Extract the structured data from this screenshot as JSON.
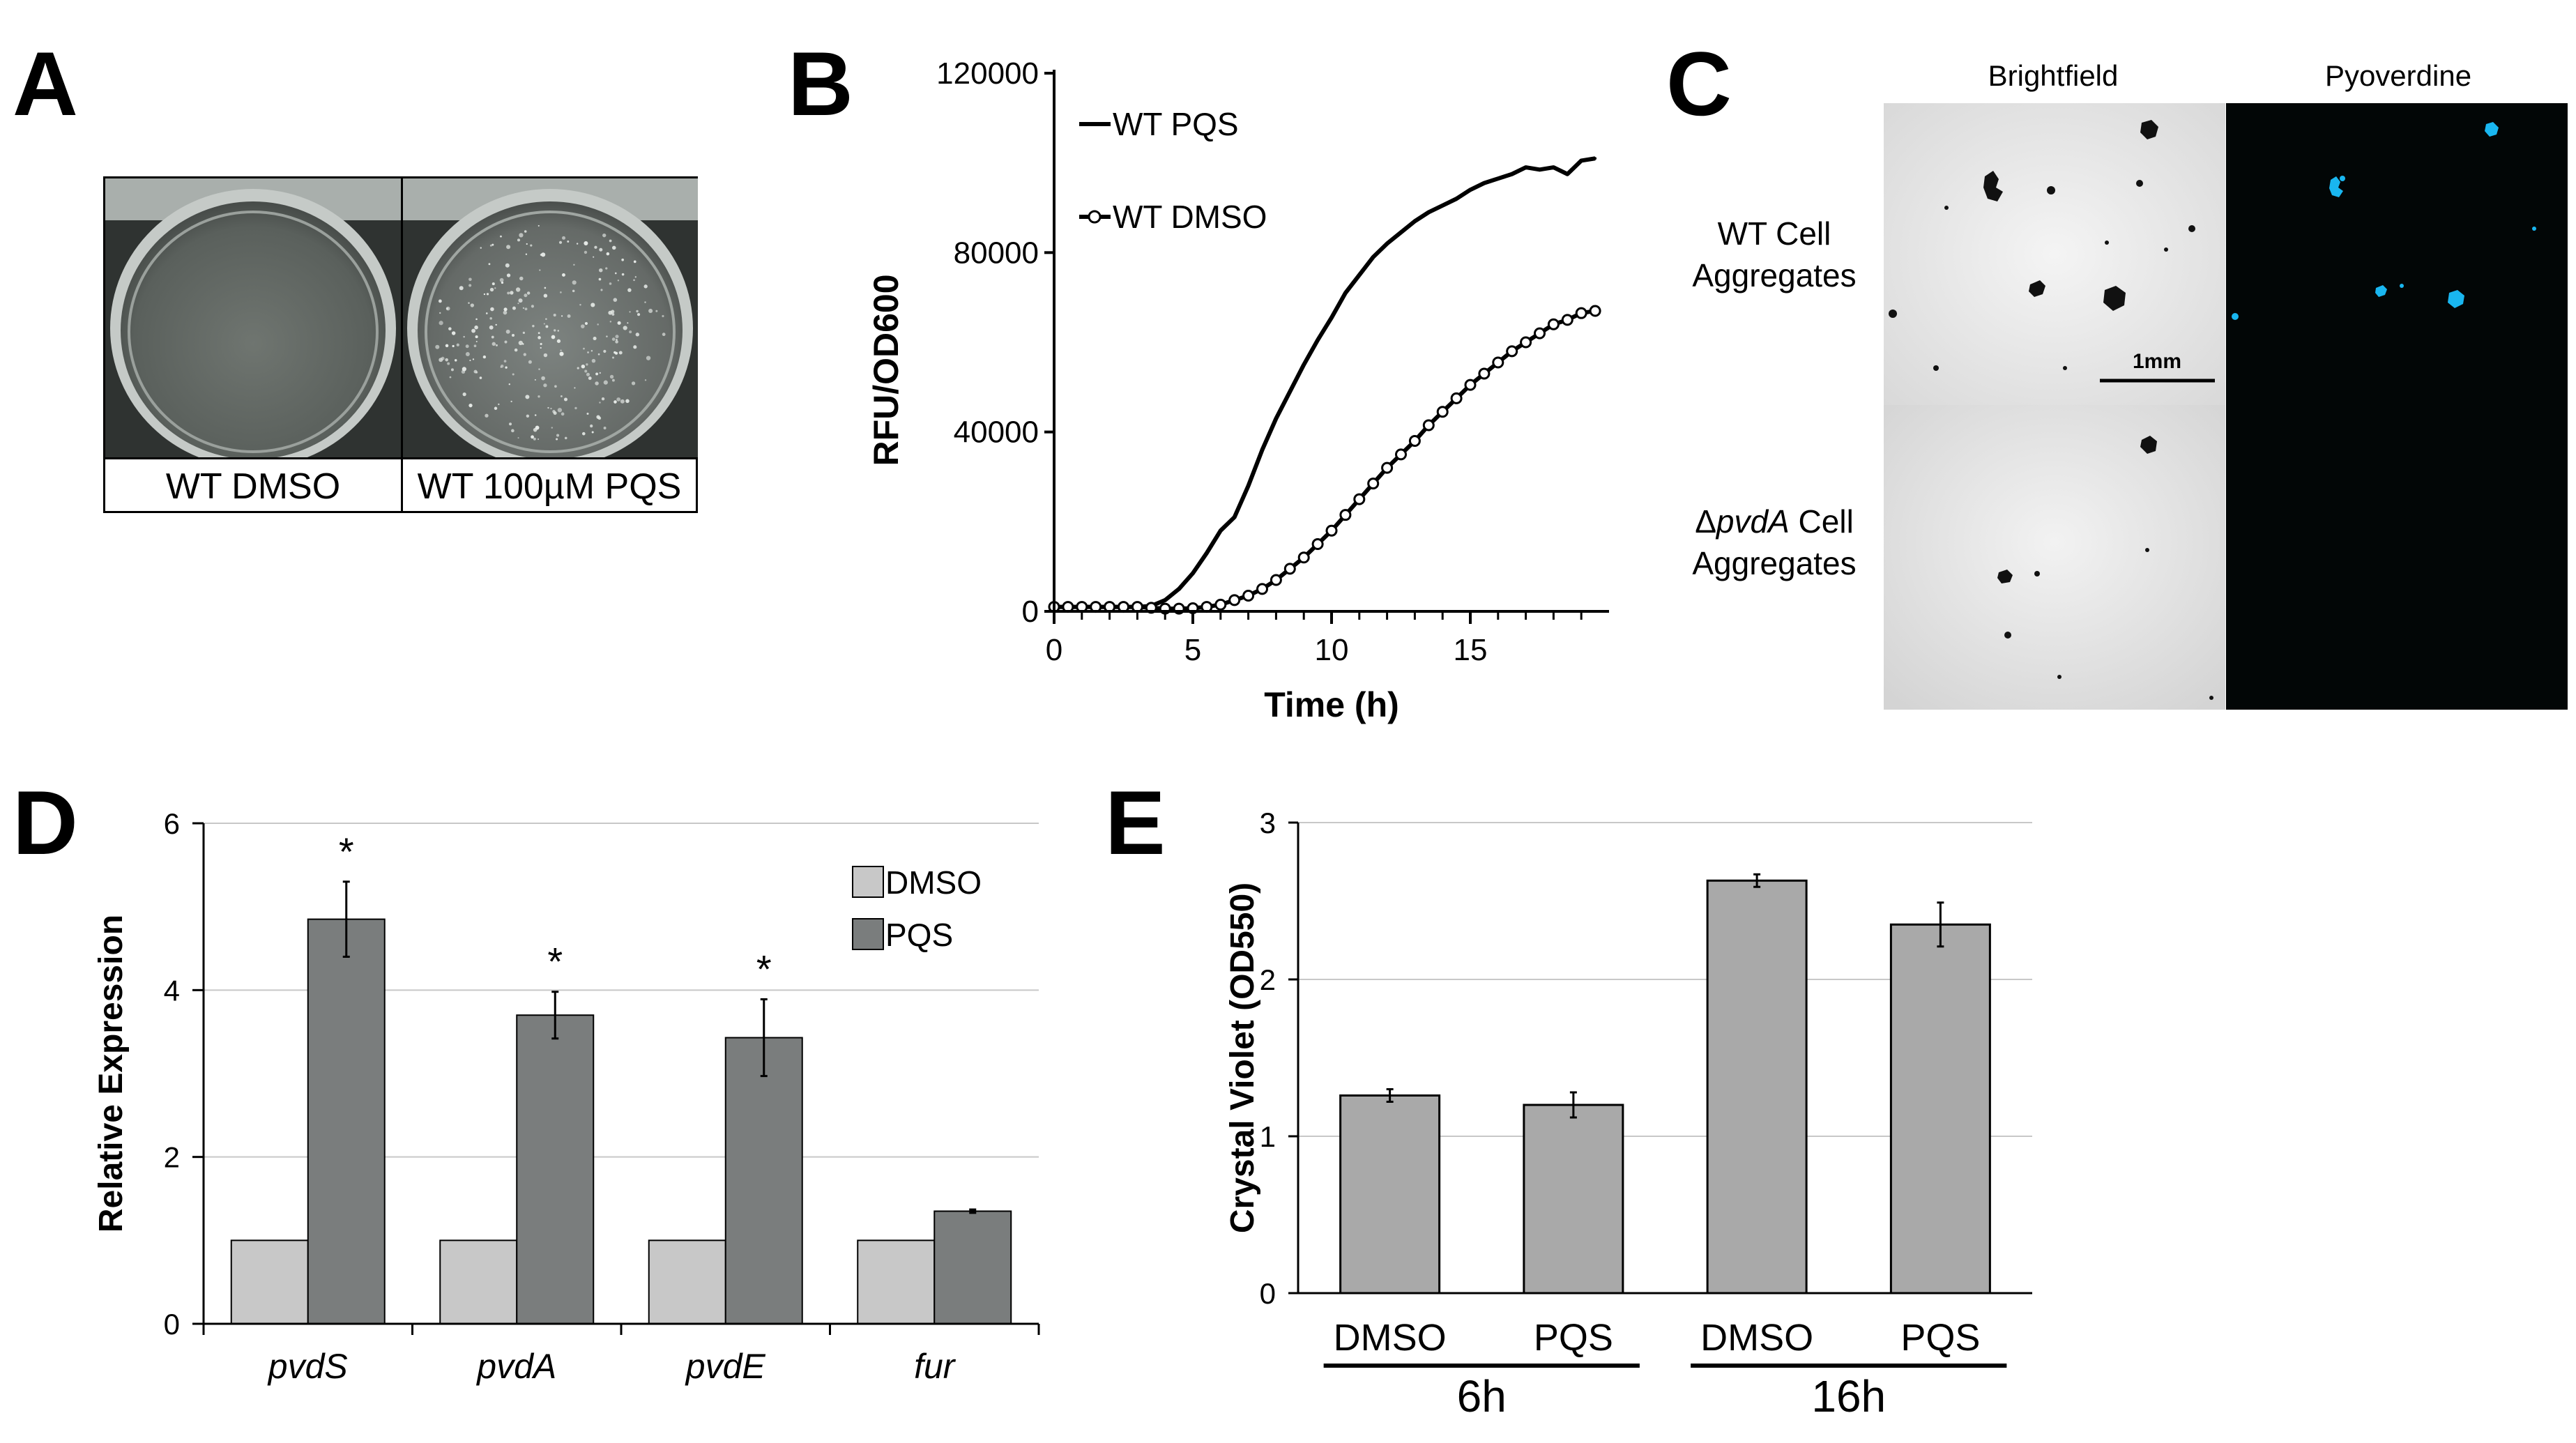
{
  "panels": {
    "a": "A",
    "b": "B",
    "c": "C",
    "d": "D",
    "e": "E"
  },
  "panelA": {
    "labels": [
      "WT DMSO",
      "WT 100µM PQS"
    ]
  },
  "panelC": {
    "columns": [
      "Brightfield",
      "Pyoverdine"
    ],
    "rows": [
      {
        "prefix": "",
        "italic": "",
        "line1": "WT Cell",
        "line2": "Aggregates"
      },
      {
        "prefix": "Δ",
        "italic": "pvdA",
        "line1": " Cell",
        "line2": "Aggregates"
      }
    ],
    "scalebar": "1mm"
  },
  "colors": {
    "dmso": "#c8c8c8",
    "pqs": "#7a7d7d",
    "biofilm": "#a9a9a9",
    "pyoverdine": "#19b6f0"
  },
  "chart_data": [
    {
      "id": "B",
      "type": "line",
      "xlabel": "Time (h)",
      "ylabel": "RFU/OD600",
      "xlim": [
        0,
        20
      ],
      "ylim": [
        0,
        120000
      ],
      "xticks": [
        "0",
        "5",
        "10",
        "15"
      ],
      "xtick_values": [
        0,
        5,
        10,
        15
      ],
      "yticks": [
        "0",
        "40000",
        "80000",
        "120000"
      ],
      "ytick_values": [
        0,
        40000,
        80000,
        120000
      ],
      "series": [
        {
          "name": "WT PQS",
          "marker": "none",
          "x": [
            0,
            0.5,
            1,
            1.5,
            2,
            2.5,
            3,
            3.5,
            4,
            4.5,
            5,
            5.5,
            6,
            6.5,
            7,
            7.5,
            8,
            8.5,
            9,
            9.5,
            10,
            10.5,
            11,
            11.5,
            12,
            12.5,
            13,
            13.5,
            14,
            14.5,
            15,
            15.5,
            16,
            16.5,
            17,
            17.5,
            18,
            18.5,
            19,
            19.5
          ],
          "y": [
            1000,
            1000,
            1000,
            1000,
            1000,
            1000,
            1000,
            1200,
            2500,
            5000,
            8500,
            13000,
            18000,
            21000,
            28000,
            36000,
            43000,
            49000,
            55000,
            60500,
            65500,
            71000,
            75000,
            79000,
            82000,
            84500,
            87000,
            89000,
            90500,
            92000,
            94000,
            95500,
            96500,
            97500,
            99000,
            98500,
            99000,
            97500,
            100500,
            101000
          ]
        },
        {
          "name": "WT DMSO",
          "marker": "circle",
          "x": [
            0,
            0.5,
            1,
            1.5,
            2,
            2.5,
            3,
            3.5,
            4,
            4.5,
            5,
            5.5,
            6,
            6.5,
            7,
            7.5,
            8,
            8.5,
            9,
            9.5,
            10,
            10.5,
            11,
            11.5,
            12,
            12.5,
            13,
            13.5,
            14,
            14.5,
            15,
            15.5,
            16,
            16.5,
            17,
            17.5,
            18,
            18.5,
            19,
            19.5
          ],
          "y": [
            1000,
            1000,
            1000,
            1000,
            1000,
            1000,
            1000,
            800,
            600,
            600,
            700,
            1000,
            1500,
            2500,
            3500,
            5000,
            7000,
            9500,
            12000,
            15000,
            18000,
            21500,
            25000,
            28500,
            32000,
            35000,
            38000,
            41500,
            44500,
            47500,
            50500,
            53000,
            55500,
            58000,
            60000,
            62000,
            64000,
            65000,
            66500,
            67000
          ]
        }
      ]
    },
    {
      "id": "D",
      "type": "bar",
      "ylabel": "Relative Expression",
      "ylim": [
        0,
        6
      ],
      "yticks": [
        "0",
        "2",
        "4",
        "6"
      ],
      "ytick_values": [
        0,
        2,
        4,
        6
      ],
      "categories": [
        "pvdS",
        "pvdA",
        "pvdE",
        "fur"
      ],
      "series": [
        {
          "name": "DMSO",
          "values": [
            1,
            1,
            1,
            1
          ],
          "errors": [
            0,
            0,
            0,
            0
          ]
        },
        {
          "name": "PQS",
          "values": [
            4.85,
            3.7,
            3.43,
            1.35
          ],
          "errors": [
            0.45,
            0.28,
            0.46,
            0.02
          ]
        }
      ],
      "annotations": [
        "*",
        "*",
        "*",
        ""
      ],
      "legend": "top-right"
    },
    {
      "id": "E",
      "type": "bar",
      "ylabel": "Crystal Violet (OD550)",
      "ylim": [
        0,
        3
      ],
      "yticks": [
        "0",
        "1",
        "2",
        "3"
      ],
      "ytick_values": [
        0,
        1,
        2,
        3
      ],
      "categories": [
        "DMSO",
        "PQS",
        "DMSO",
        "PQS"
      ],
      "values": [
        1.26,
        1.2,
        2.63,
        2.35
      ],
      "errors": [
        0.04,
        0.08,
        0.04,
        0.14
      ],
      "groups": [
        {
          "label": "6h",
          "members": [
            0,
            1
          ]
        },
        {
          "label": "16h",
          "members": [
            2,
            3
          ]
        }
      ]
    }
  ]
}
